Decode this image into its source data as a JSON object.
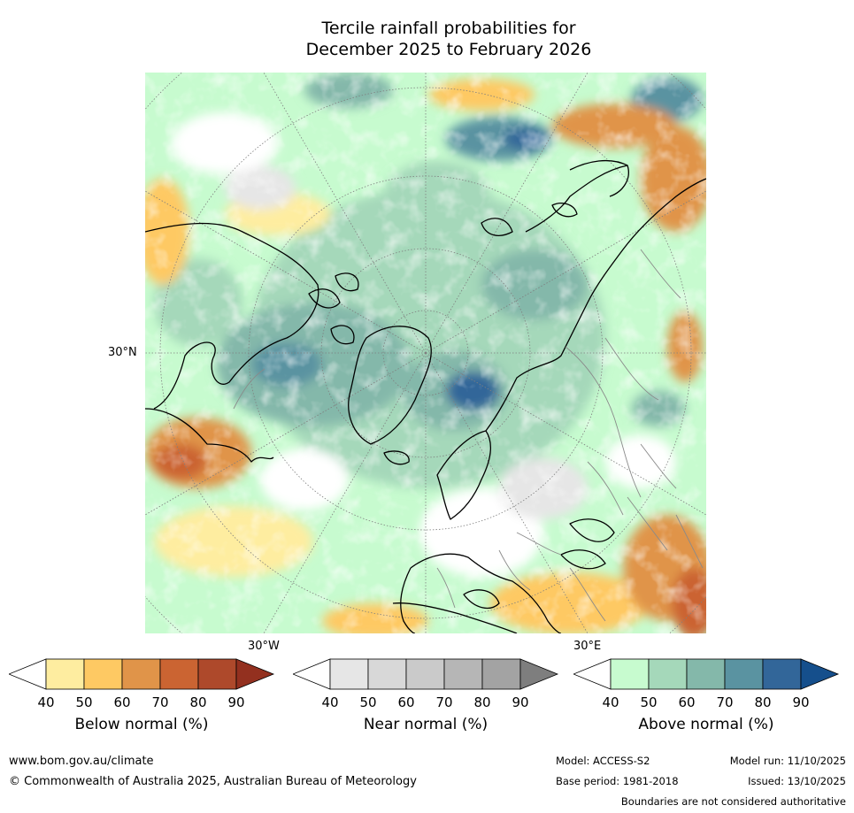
{
  "title": {
    "line1": "Tercile rainfall probabilities for",
    "line2": "December 2025 to February 2026"
  },
  "map": {
    "projection": "north polar stereographic",
    "lat_label": "30°N",
    "lon_label_west": "30°W",
    "lon_label_east": "30°E",
    "colors": {
      "land_outline": "#000000",
      "borders": "#808080",
      "graticule": "#7f7f7f"
    }
  },
  "colorbars": [
    {
      "label": "Below normal (%)",
      "ticks": [
        "40",
        "50",
        "60",
        "70",
        "80",
        "90"
      ],
      "colors": [
        "#ffffff",
        "#feeda0",
        "#fec963",
        "#e09449",
        "#cb6432",
        "#ae492b",
        "#93301f"
      ]
    },
    {
      "label": "Near normal (%)",
      "ticks": [
        "40",
        "50",
        "60",
        "70",
        "80",
        "90"
      ],
      "colors": [
        "#ffffff",
        "#e6e6e6",
        "#d8d8d8",
        "#cacaca",
        "#b6b6b6",
        "#a3a3a3",
        "#7e7e7e"
      ]
    },
    {
      "label": "Above normal (%)",
      "ticks": [
        "40",
        "50",
        "60",
        "70",
        "80",
        "90"
      ],
      "colors": [
        "#ffffff",
        "#c7fbcf",
        "#a5d8ba",
        "#84b8aa",
        "#5a93a1",
        "#326699",
        "#154f8c"
      ]
    }
  ],
  "footer": {
    "url": "www.bom.gov.au/climate",
    "copyright": "© Commonwealth of Australia 2025, Australian Bureau of Meteorology",
    "model": "Model: ACCESS-S2",
    "base_period": "Base period: 1981-2018",
    "model_run": "Model run: 11/10/2025",
    "issued": "Issued: 13/10/2025",
    "boundaries": "Boundaries are not considered authoritative"
  }
}
